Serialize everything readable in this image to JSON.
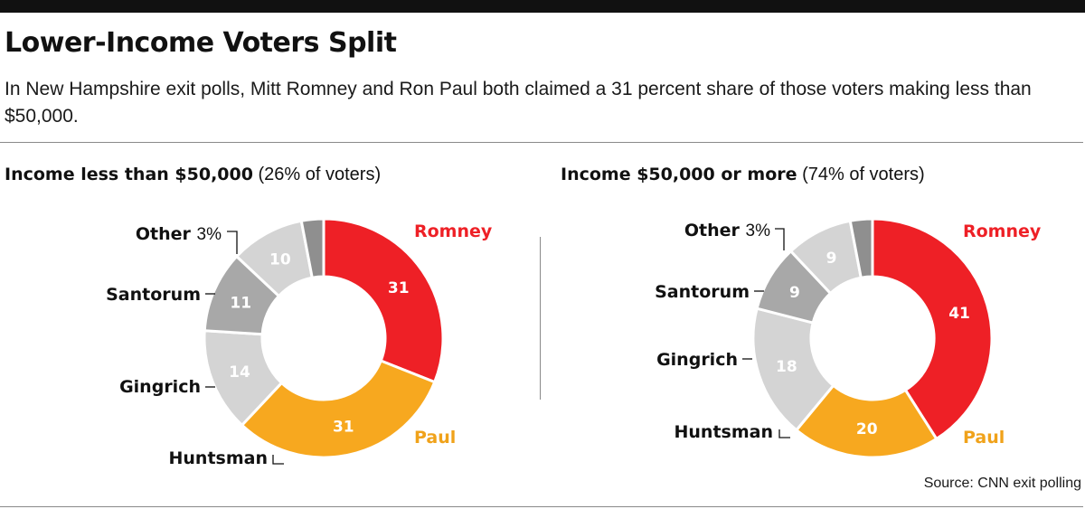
{
  "title": "Lower-Income Voters Split",
  "subtitle": "In New Hampshire exit polls, Mitt Romney and Ron Paul both claimed a 31 percent share of those voters making less than $50,000.",
  "source": "Source: CNN exit polling",
  "colors": {
    "Romney": "#ee2026",
    "Paul": "#f7a81f",
    "Huntsman": "#d4d4d4",
    "Gingrich": "#a8a8a8",
    "Santorum": "#d4d4d4",
    "Other": "#8f8f8f",
    "red_label": "#ee2026",
    "orange_label": "#f0a21a"
  },
  "chart_data": [
    {
      "type": "pie",
      "title_bold": "Income less than $50,000",
      "title_rest": "(26% of voters)",
      "categories": [
        "Romney",
        "Paul",
        "Huntsman",
        "Gingrich",
        "Santorum",
        "Other"
      ],
      "values": [
        31,
        31,
        14,
        11,
        10,
        3
      ],
      "other_label": "3%"
    },
    {
      "type": "pie",
      "title_bold": "Income $50,000 or more",
      "title_rest": "(74% of voters)",
      "categories": [
        "Romney",
        "Paul",
        "Huntsman",
        "Gingrich",
        "Santorum",
        "Other"
      ],
      "values": [
        41,
        20,
        18,
        9,
        9,
        3
      ],
      "other_label": "3%"
    }
  ]
}
